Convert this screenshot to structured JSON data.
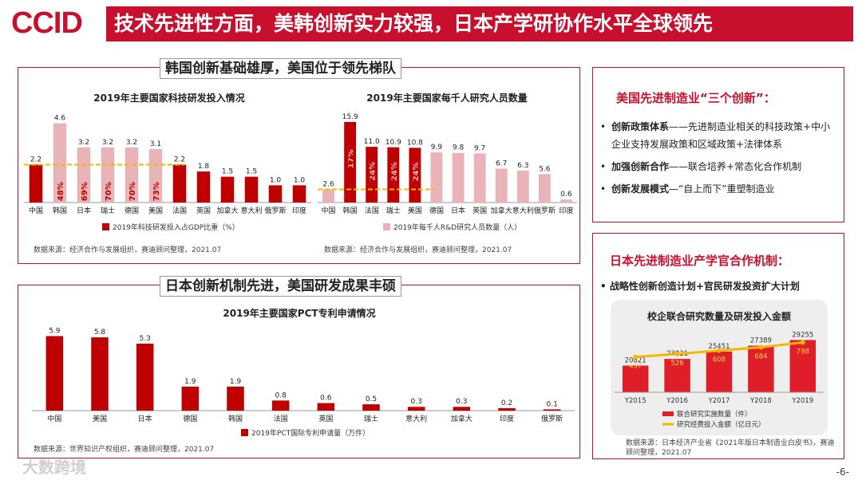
{
  "header": {
    "logo": "CCID",
    "title": "技术先进性方面，美韩创新实力较强，日本产学研协作水平全球领先"
  },
  "panel_korea": {
    "title": "韩国创新基础雄厚，美国位于领先梯队",
    "source_left": "数据来源：经济合作与发展组织，赛迪顾问整理，2021.07",
    "source_right": "数据来源：经济合作与发展组织，赛迪顾问整理，2021.07"
  },
  "panel_japan": {
    "title": "日本创新机制先进，美国研发成果丰硕",
    "source": "数据来源：世界知识产权组织，赛迪顾问整理，2021.07"
  },
  "us_box": {
    "heading": "美国先进制造业“三个创新”：",
    "items": [
      {
        "bold": "创新政策体系",
        "text": "——先进制造业相关的科技政策+中小企业支持发展政策和区域政策+法律体系"
      },
      {
        "bold": "加强创新合作",
        "text": "——联合培养+常态化合作机制"
      },
      {
        "bold": "创新发展模式",
        "text": "—“自上而下”重塑制造业"
      }
    ]
  },
  "japan_box": {
    "heading": "日本先进制造业产学官合作机制：",
    "bullet": "战略性创新创造计划+官民研发投资扩大计划",
    "source": "数据来源：日本经济产业省《2021年版日本制造业白皮书》，赛迪顾问整理，2021.07"
  },
  "chart_data": [
    {
      "type": "bar",
      "title": "2019年主要国家科技研发投入情况",
      "categories": [
        "中国",
        "韩国",
        "日本",
        "瑞士",
        "德国",
        "美国",
        "法国",
        "英国",
        "加拿大",
        "意大利",
        "俄罗斯",
        "印度"
      ],
      "series": [
        {
          "name": "2019年科技研发投入占GDP比重（%）",
          "values": [
            2.2,
            4.6,
            3.2,
            3.2,
            3.2,
            3.1,
            2.2,
            1.8,
            1.5,
            1.5,
            1.0,
            1.0
          ]
        }
      ],
      "annotations": [
        {
          "category": "韩国",
          "text": "48%"
        },
        {
          "category": "日本",
          "text": "69%"
        },
        {
          "category": "瑞士",
          "text": "70%"
        },
        {
          "category": "德国",
          "text": "70%"
        },
        {
          "category": "美国",
          "text": "73%"
        }
      ],
      "reference_line": 2.2,
      "ylim": [
        0,
        5
      ],
      "colors": {
        "bar": "#c00000",
        "highlight_bar": "#e8b4b8",
        "ref_line": "#f5b800"
      }
    },
    {
      "type": "bar",
      "title": "2019年主要国家每千人研究人员数量",
      "categories": [
        "中国",
        "韩国",
        "法国",
        "瑞士",
        "美国",
        "德国",
        "日本",
        "英国",
        "加拿大",
        "意大利",
        "俄罗斯",
        "印度"
      ],
      "series": [
        {
          "name": "2019年每千人R&D研究人员数量（人）",
          "values": [
            2.6,
            15.9,
            11.0,
            10.9,
            10.8,
            9.9,
            9.8,
            9.7,
            6.7,
            6.3,
            5.6,
            0.6
          ]
        }
      ],
      "annotations": [
        {
          "category": "韩国",
          "text": "17%"
        },
        {
          "category": "法国",
          "text": "24%"
        },
        {
          "category": "瑞士",
          "text": "24%"
        },
        {
          "category": "美国",
          "text": "24%"
        }
      ],
      "reference_line": 2.6,
      "ylim": [
        0,
        17
      ],
      "colors": {
        "bar": "#e8b4b8",
        "highlight_bar": "#c00000",
        "ref_line": "#f5b800"
      }
    },
    {
      "type": "bar",
      "title": "2019年主要国家PCT专利申请情况",
      "categories": [
        "中国",
        "美国",
        "日本",
        "德国",
        "韩国",
        "法国",
        "英国",
        "瑞士",
        "意大利",
        "加拿大",
        "印度",
        "俄罗斯"
      ],
      "series": [
        {
          "name": "2019年PCT国际专利申请量（万件）",
          "values": [
            5.9,
            5.8,
            5.3,
            1.9,
            1.9,
            0.8,
            0.6,
            0.5,
            0.3,
            0.3,
            0.2,
            0.1
          ]
        }
      ],
      "ylim": [
        0,
        6.5
      ],
      "colors": {
        "bar": "#c00000"
      }
    },
    {
      "type": "bar",
      "title": "校企联合研究数量及研发投入金额",
      "categories": [
        "Y2015",
        "Y2016",
        "Y2017",
        "Y2018",
        "Y2019"
      ],
      "series": [
        {
          "name": "联合研究实施数量（件）",
          "kind": "bar",
          "values": [
            20821,
            23021,
            25451,
            27389,
            29255
          ]
        },
        {
          "name": "研究经费投入金额（亿日元）",
          "kind": "line",
          "values": [
            457,
            526,
            608,
            684,
            798
          ]
        }
      ],
      "ylim": [
        0,
        32000
      ],
      "colors": {
        "bar": "#e01e2a",
        "line": "#f5b800"
      }
    }
  ],
  "page_number": "-6-",
  "watermark": "大数跨境"
}
